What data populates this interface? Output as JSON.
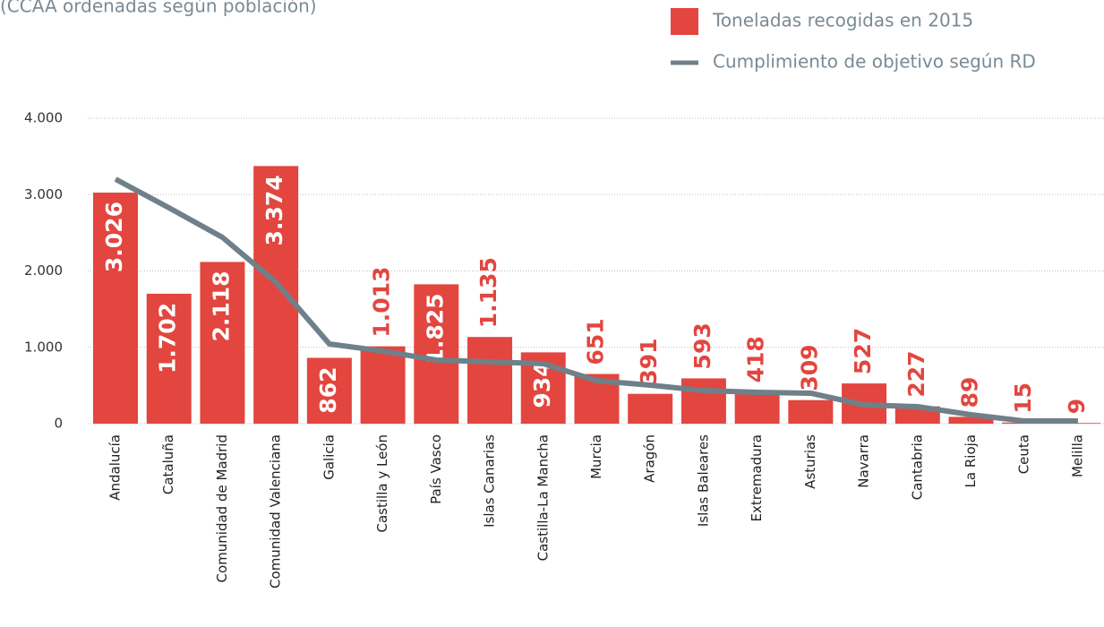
{
  "chart_data": {
    "type": "bar",
    "subtitle": "(CCAA ordenadas según población)",
    "categories": [
      "Andalucía",
      "Cataluña",
      "Comunidad de Madrid",
      "Comunidad Valenciana",
      "Galicia",
      "Castilla y León",
      "País Vasco",
      "Islas Canarias",
      "Castilla-La Mancha",
      "Murcia",
      "Aragón",
      "Islas Baleares",
      "Extremadura",
      "Asturias",
      "Navarra",
      "Cantabria",
      "La Rioja",
      "Ceuta",
      "Melilla"
    ],
    "series": [
      {
        "name": "Toneladas recogidas en 2015",
        "color": "#e2463f",
        "type": "bar",
        "values": [
          3026,
          1702,
          2118,
          3374,
          862,
          1013,
          1825,
          1135,
          934,
          651,
          391,
          593,
          418,
          309,
          527,
          227,
          89,
          15,
          9
        ],
        "value_labels": [
          "3.026",
          "1.702",
          "2.118",
          "3.374",
          "862",
          "1.013",
          "1.825",
          "1.135",
          "934",
          "651",
          "391",
          "593",
          "418",
          "309",
          "527",
          "227",
          "89",
          "15",
          "9"
        ]
      },
      {
        "name": "Cumplimiento de objetivo según RD",
        "color": "#6f8089",
        "type": "line",
        "values": [
          3202,
          2827,
          2440,
          1853,
          1044,
          950,
          833,
          810,
          786,
          563,
          504,
          434,
          411,
          399,
          246,
          223,
          117,
          35,
          35
        ]
      }
    ],
    "ylim": [
      0,
      4000
    ],
    "yticks": [
      {
        "value": 0,
        "label": "0"
      },
      {
        "value": 1000,
        "label": "1.000"
      },
      {
        "value": 2000,
        "label": "2.000"
      },
      {
        "value": 3000,
        "label": "3.000"
      },
      {
        "value": 4000,
        "label": "4.000"
      }
    ],
    "grid": true
  }
}
